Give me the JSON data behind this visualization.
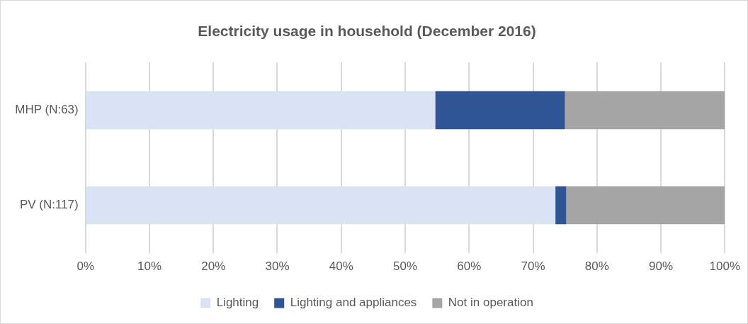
{
  "chart_data": {
    "type": "bar",
    "orientation": "horizontal",
    "stacked": true,
    "title": "Electricity usage in household (December 2016)",
    "categories": [
      "MHP (N:63)",
      "PV (N:117)"
    ],
    "series": [
      {
        "name": "Lighting",
        "color": "#dae3f3",
        "values": [
          54.7,
          73.5
        ]
      },
      {
        "name": "Lighting and appliances",
        "color": "#2f5597",
        "values": [
          20.3,
          1.7
        ]
      },
      {
        "name": "Not in operation",
        "color": "#a5a5a5",
        "values": [
          25.0,
          24.8
        ]
      }
    ],
    "xlim": [
      0,
      100
    ],
    "xticks": [
      {
        "value": 0,
        "label": "0%"
      },
      {
        "value": 10,
        "label": "10%"
      },
      {
        "value": 20,
        "label": "20%"
      },
      {
        "value": 30,
        "label": "30%"
      },
      {
        "value": 40,
        "label": "40%"
      },
      {
        "value": 50,
        "label": "50%"
      },
      {
        "value": 60,
        "label": "60%"
      },
      {
        "value": 70,
        "label": "70%"
      },
      {
        "value": 80,
        "label": "80%"
      },
      {
        "value": 90,
        "label": "90%"
      },
      {
        "value": 100,
        "label": "100%"
      }
    ],
    "grid": "x",
    "legend": "bottom"
  }
}
